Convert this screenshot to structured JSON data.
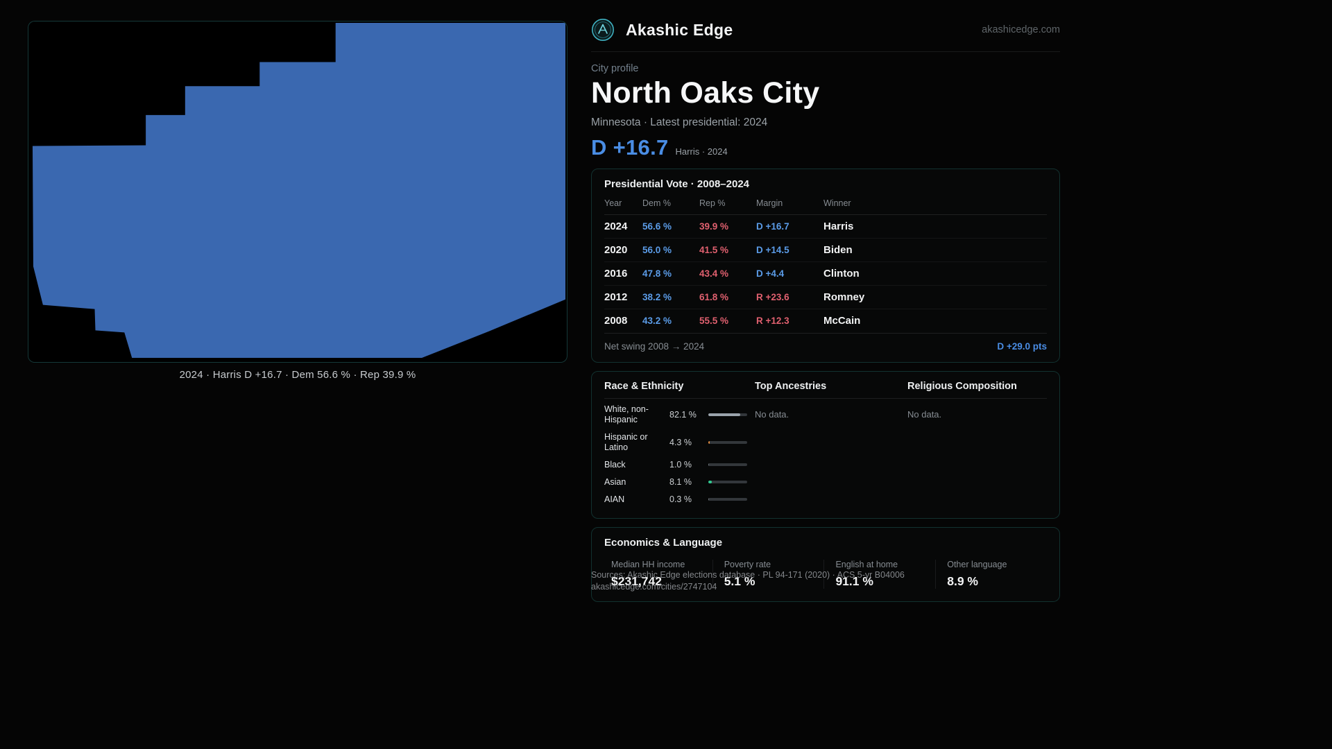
{
  "header": {
    "brand": "Akashic Edge",
    "domain": "akashicedge.com",
    "logo_icon": "akashic-edge-logo"
  },
  "profile": {
    "eyebrow": "City profile",
    "title": "North Oaks City",
    "subtitle": "Minnesota · Latest presidential: 2024",
    "lead_margin": "D +16.7",
    "lead_context": "Harris · 2024"
  },
  "map": {
    "caption": "2024 · Harris D +16.7 · Dem 56.6 % · Rep 39.9 %",
    "shape_fill": "#3a68b0"
  },
  "vote_card": {
    "title": "Presidential Vote · 2008–2024",
    "columns": [
      "Year",
      "Dem %",
      "Rep %",
      "Margin",
      "Winner"
    ],
    "rows": [
      {
        "year": "2024",
        "dem": "56.6 %",
        "rep": "39.9 %",
        "margin": "D +16.7",
        "winner": "Harris"
      },
      {
        "year": "2020",
        "dem": "56.0 %",
        "rep": "41.5 %",
        "margin": "D +14.5",
        "winner": "Biden"
      },
      {
        "year": "2016",
        "dem": "47.8 %",
        "rep": "43.4 %",
        "margin": "D +4.4",
        "winner": "Clinton"
      },
      {
        "year": "2012",
        "dem": "38.2 %",
        "rep": "61.8 %",
        "margin": "R +23.6",
        "winner": "Romney"
      },
      {
        "year": "2008",
        "dem": "43.2 %",
        "rep": "55.5 %",
        "margin": "R +12.3",
        "winner": "McCain"
      }
    ],
    "footer_label": "Net swing 2008 → 2024",
    "footer_value": "D +29.0 pts"
  },
  "demographics": {
    "race": {
      "title": "Race & Ethnicity",
      "rows": [
        {
          "label": "White, non-Hispanic",
          "value": "82.1 %",
          "pct": 82.1,
          "color": "#9aa3ac"
        },
        {
          "label": "Hispanic or Latino",
          "value": "4.3 %",
          "pct": 4.3,
          "color": "#e08a3c"
        },
        {
          "label": "Black",
          "value": "1.0 %",
          "pct": 1.0,
          "color": "#6b7177"
        },
        {
          "label": "Asian",
          "value": "8.1 %",
          "pct": 8.1,
          "color": "#2fc98f"
        },
        {
          "label": "AIAN",
          "value": "0.3 %",
          "pct": 0.3,
          "color": "#6b7177"
        }
      ]
    },
    "ancestries": {
      "title": "Top Ancestries",
      "empty": "No data."
    },
    "religion": {
      "title": "Religious Composition",
      "empty": "No data."
    }
  },
  "economics": {
    "title": "Economics & Language",
    "stats": [
      {
        "label": "Median HH income",
        "value": "$231,742"
      },
      {
        "label": "Poverty rate",
        "value": "5.1 %"
      },
      {
        "label": "English at home",
        "value": "91.1 %"
      },
      {
        "label": "Other language",
        "value": "8.9 %"
      }
    ]
  },
  "footer": {
    "sources": "Sources: Akashic Edge elections database · PL 94-171 (2020) · ACS 5-yr B04006",
    "permalink": "akashicedge.com/cities/2747104"
  },
  "colors": {
    "dem_blue": "#5b9ce8",
    "rep_red": "#e0606f",
    "accent_teal": "#3fb0c0",
    "background": "#050505"
  }
}
